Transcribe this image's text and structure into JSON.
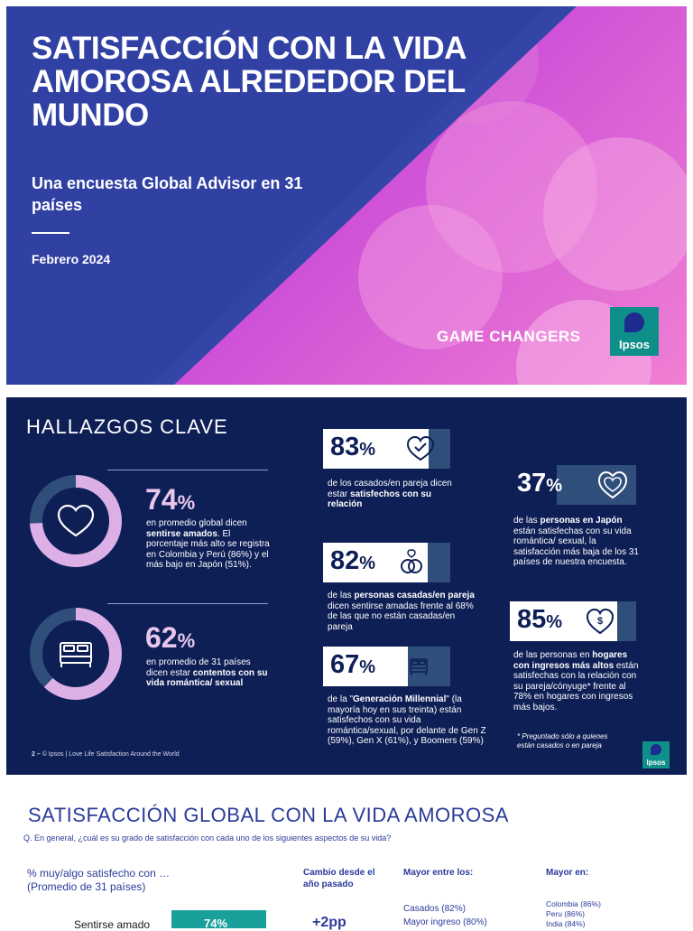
{
  "cover": {
    "title": "SATISFACCIÓN CON LA VIDA AMOROSA ALREDEDOR DEL MUNDO",
    "subtitle": "Una encuesta Global Advisor en 31 países",
    "date": "Febrero 2024",
    "tagline": "GAME CHANGERS",
    "logo": "Ipsos"
  },
  "findings": {
    "heading": "HALLAZGOS CLAVE",
    "loved": {
      "value": "74",
      "unit": "%",
      "percent": 74,
      "text_pre": "en promedio global dicen ",
      "text_bold": "sentirse amados",
      "text_post": ". El porcentaje más alto se registra en Colombia y Perú (86%) y el más bajo en Japón (51%)."
    },
    "content": {
      "value": "62",
      "unit": "%",
      "percent": 62,
      "text_pre": "en promedio de 31 países dicen estar ",
      "text_bold": "contentos con su vida romántica/ sexual",
      "text_post": ""
    },
    "married": {
      "value": "83",
      "unit": "%",
      "percent": 83,
      "text_pre": "de los casados/en pareja dicen estar ",
      "text_bold": "satisfechos con su relación",
      "text_post": ""
    },
    "married_loved": {
      "value": "82",
      "unit": "%",
      "percent": 82,
      "text_pre": "de las ",
      "text_bold": "personas casadas/en pareja",
      "text_post": " dicen sentirse amadas frente al 68% de las que no están casadas/en pareja"
    },
    "millennial": {
      "value": "67",
      "unit": "%",
      "percent": 67,
      "text_pre": "de la \"",
      "text_bold": "Generación Millennial",
      "text_post": "\" (la mayoría hoy en sus treinta) están satisfechos con su vida romántica/sexual, por delante de Gen Z (59%), Gen X (61%), y Boomers (59%)"
    },
    "japan": {
      "value": "37",
      "unit": "%",
      "percent": 37,
      "text_pre": "de las ",
      "text_bold": "personas en Japón",
      "text_post": " están satisfechas con su vida romántica/ sexual, la satisfacción más baja de los 31 países de nuestra encuesta."
    },
    "income": {
      "value": "85",
      "unit": "%",
      "percent": 85,
      "text_pre": "de las personas en ",
      "text_bold": "hogares con ingresos más altos",
      "text_post": " están satisfechas con la relación con su pareja/cónyuge* frente al 78% en hogares con ingresos más bajos."
    },
    "note": "* Preguntado sólo a quienes están casados o en pareja",
    "footer_num": "2 –",
    "footer_text": "© Ipsos | Love Life Satisfaction Around the World",
    "logo": "Ipsos"
  },
  "global": {
    "heading": "SATISFACCIÓN GLOBAL CON LA VIDA AMOROSA",
    "question": "Q. En general, ¿cuál es su grado de satisfacción con cada uno de los siguientes aspectos de su vida?",
    "left_head_1": "% muy/algo satisfecho con …",
    "left_head_2": "(Promedio de 31 países)",
    "col_change": "Cambio desde el año pasado",
    "col_highest_among": "Mayor entre los:",
    "col_highest_in": "Mayor en:",
    "row_label": "Sentirse amado",
    "row_value": "74%",
    "row_change": "+2pp",
    "highest_among": [
      "Casados (82%)",
      "Mayor ingreso (80%)"
    ],
    "highest_in": [
      "Colombia (86%)",
      "Peru (86%)",
      "India (84%)"
    ]
  }
}
